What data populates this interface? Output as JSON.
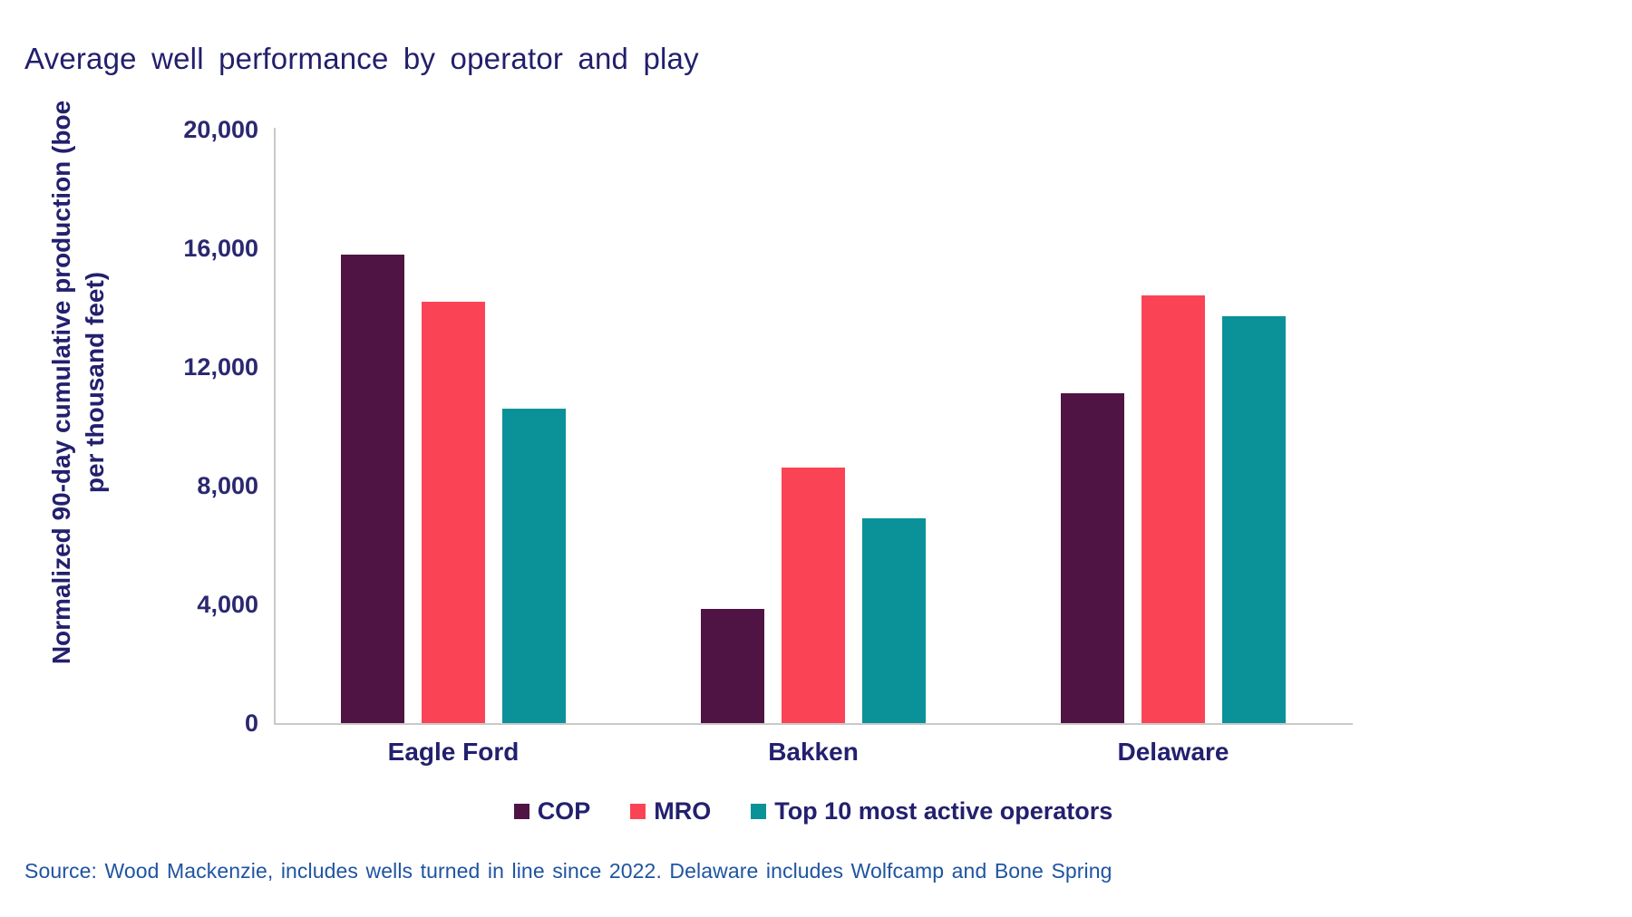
{
  "title": "Average well performance by operator and play",
  "source": "Source:  Wood Mackenzie,  includes wells turned in line since 2022. Delaware includes Wolfcamp and Bone Spring",
  "colors": {
    "cop": "#4F1443",
    "mro": "#FA4455",
    "top10": "#0A9298",
    "chart_text_navy": "#23206E",
    "title_navy": "#221F6B",
    "source_blue": "#1F54A0",
    "axis_gray": "#C9C9C9",
    "background": "#FFFFFF"
  },
  "chart_data": {
    "type": "bar",
    "title": "Average well performance by operator and play",
    "xlabel": "",
    "ylabel": "Normalized 90-day cumulative production (boe per thousand feet)",
    "ylabel_lines": [
      "Normalized 90-day cumulative production (boe",
      "per thousand feet)"
    ],
    "categories": [
      "Eagle Ford",
      "Bakken",
      "Delaware"
    ],
    "series": [
      {
        "name": "COP",
        "color": "#4F1443",
        "values": [
          15800,
          3850,
          11100
        ]
      },
      {
        "name": "MRO",
        "color": "#FA4455",
        "values": [
          14200,
          8600,
          14400
        ]
      },
      {
        "name": "Top 10 most active operators",
        "color": "#0A9298",
        "values": [
          10600,
          6900,
          13700
        ]
      }
    ],
    "ylim": [
      0,
      20000
    ],
    "yticks": [
      0,
      4000,
      8000,
      12000,
      16000,
      20000
    ],
    "ytick_labels": [
      "0",
      "4,000",
      "8,000",
      "12,000",
      "16,000",
      "20,000"
    ],
    "grid": false,
    "legend_position": "bottom-center",
    "source_note": "Source:  Wood Mackenzie,  includes wells turned in line since 2022. Delaware includes Wolfcamp and Bone Spring"
  }
}
